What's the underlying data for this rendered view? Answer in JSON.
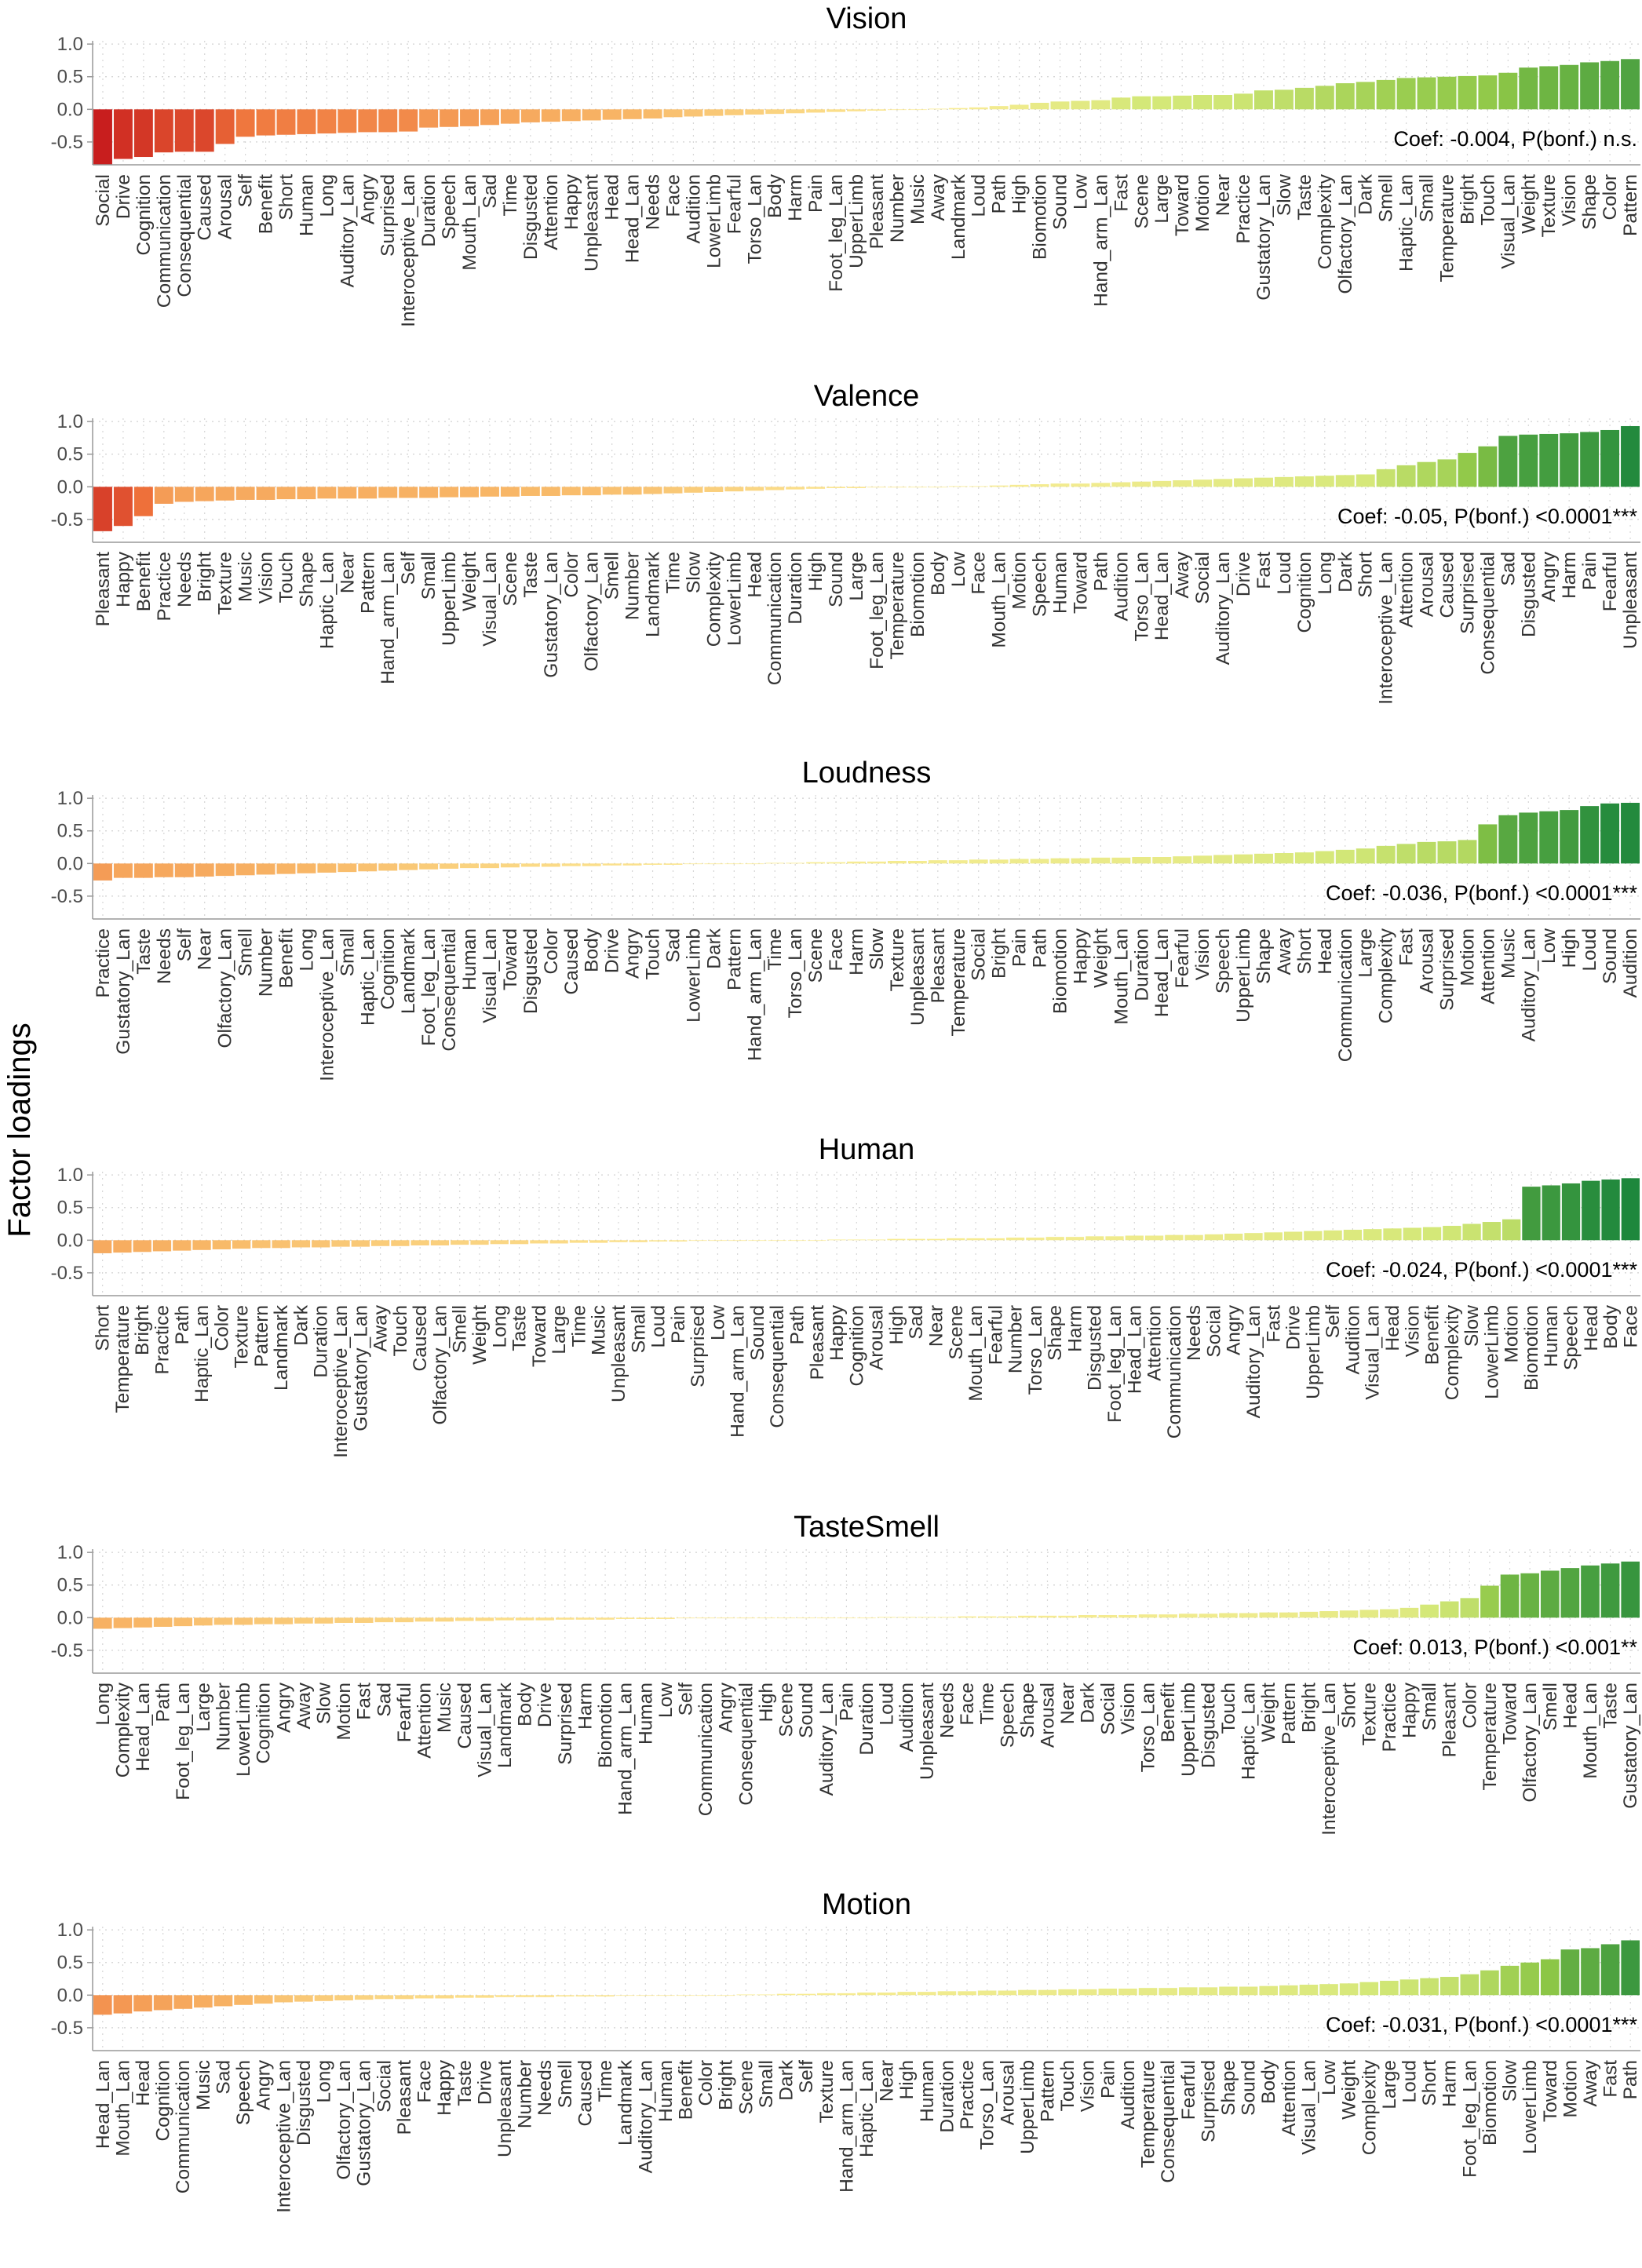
{
  "chart_data": {
    "type": "bar",
    "ylabel": "Factor loadings",
    "ylim": [
      -0.85,
      1.05
    ],
    "yticks": [
      1.0,
      0.5,
      0.0,
      -0.5
    ],
    "ytick_labels": [
      "1.0",
      "0.5",
      "0.0",
      "-0.5"
    ],
    "panels": [
      {
        "title": "Vision",
        "annotation": "Coef: -0.004, P(bonf.)  n.s.",
        "categories": [
          "Social",
          "Drive",
          "Cognition",
          "Communication",
          "Consequential",
          "Caused",
          "Arousal",
          "Self",
          "Benefit",
          "Short",
          "Human",
          "Long",
          "Auditory_Lan",
          "Angry",
          "Surprised",
          "Interoceptive_Lan",
          "Duration",
          "Speech",
          "Mouth_Lan",
          "Sad",
          "Time",
          "Disgusted",
          "Attention",
          "Happy",
          "Unpleasant",
          "Head",
          "Head_Lan",
          "Needs",
          "Face",
          "Audition",
          "LowerLimb",
          "Fearful",
          "Torso_Lan",
          "Body",
          "Harm",
          "Pain",
          "Foot_leg_Lan",
          "UpperLimb",
          "Pleasant",
          "Number",
          "Music",
          "Away",
          "Landmark",
          "Loud",
          "Path",
          "High",
          "Biomotion",
          "Sound",
          "Low",
          "Hand_arm_Lan",
          "Fast",
          "Scene",
          "Large",
          "Toward",
          "Motion",
          "Near",
          "Practice",
          "Gustatory_Lan",
          "Slow",
          "Taste",
          "Complexity",
          "Olfactory_Lan",
          "Dark",
          "Smell",
          "Haptic_Lan",
          "Small",
          "Temperature",
          "Bright",
          "Touch",
          "Visual_Lan",
          "Weight",
          "Texture",
          "Vision",
          "Shape",
          "Color",
          "Pattern"
        ],
        "values": [
          -0.85,
          -0.76,
          -0.73,
          -0.66,
          -0.65,
          -0.65,
          -0.53,
          -0.42,
          -0.4,
          -0.39,
          -0.38,
          -0.37,
          -0.36,
          -0.35,
          -0.35,
          -0.34,
          -0.28,
          -0.27,
          -0.26,
          -0.24,
          -0.22,
          -0.2,
          -0.19,
          -0.18,
          -0.17,
          -0.16,
          -0.15,
          -0.14,
          -0.12,
          -0.11,
          -0.1,
          -0.09,
          -0.08,
          -0.07,
          -0.06,
          -0.05,
          -0.04,
          -0.03,
          -0.02,
          -0.01,
          0.0,
          0.01,
          0.02,
          0.03,
          0.05,
          0.07,
          0.1,
          0.12,
          0.13,
          0.14,
          0.18,
          0.2,
          0.2,
          0.21,
          0.22,
          0.22,
          0.24,
          0.29,
          0.3,
          0.33,
          0.36,
          0.4,
          0.42,
          0.45,
          0.48,
          0.49,
          0.5,
          0.51,
          0.52,
          0.56,
          0.64,
          0.66,
          0.68,
          0.72,
          0.74,
          0.77
        ]
      },
      {
        "title": "Valence",
        "annotation": "Coef: -0.05, P(bonf.)  <0.0001***",
        "categories": [
          "Pleasant",
          "Happy",
          "Benefit",
          "Practice",
          "Needs",
          "Bright",
          "Texture",
          "Music",
          "Vision",
          "Touch",
          "Shape",
          "Haptic_Lan",
          "Near",
          "Pattern",
          "Hand_arm_Lan",
          "Self",
          "Small",
          "UpperLimb",
          "Weight",
          "Visual_Lan",
          "Scene",
          "Taste",
          "Gustatory_Lan",
          "Color",
          "Olfactory_Lan",
          "Smell",
          "Number",
          "Landmark",
          "Time",
          "Slow",
          "Complexity",
          "LowerLimb",
          "Head",
          "Communication",
          "Duration",
          "High",
          "Sound",
          "Large",
          "Foot_leg_Lan",
          "Temperature",
          "Biomotion",
          "Body",
          "Low",
          "Face",
          "Mouth_Lan",
          "Motion",
          "Speech",
          "Human",
          "Toward",
          "Path",
          "Audition",
          "Torso_Lan",
          "Head_Lan",
          "Away",
          "Social",
          "Auditory_Lan",
          "Drive",
          "Fast",
          "Loud",
          "Cognition",
          "Long",
          "Dark",
          "Short",
          "Interoceptive_Lan",
          "Attention",
          "Arousal",
          "Caused",
          "Surprised",
          "Consequential",
          "Sad",
          "Disgusted",
          "Angry",
          "Harm",
          "Pain",
          "Fearful",
          "Unpleasant"
        ],
        "values": [
          -0.68,
          -0.6,
          -0.45,
          -0.26,
          -0.23,
          -0.22,
          -0.21,
          -0.2,
          -0.2,
          -0.19,
          -0.19,
          -0.18,
          -0.18,
          -0.18,
          -0.17,
          -0.17,
          -0.17,
          -0.16,
          -0.16,
          -0.15,
          -0.15,
          -0.14,
          -0.14,
          -0.13,
          -0.13,
          -0.12,
          -0.12,
          -0.11,
          -0.1,
          -0.09,
          -0.08,
          -0.07,
          -0.06,
          -0.05,
          -0.04,
          -0.03,
          -0.02,
          -0.02,
          -0.01,
          -0.01,
          0.0,
          0.0,
          0.01,
          0.01,
          0.02,
          0.03,
          0.04,
          0.05,
          0.05,
          0.06,
          0.07,
          0.08,
          0.09,
          0.1,
          0.11,
          0.12,
          0.13,
          0.14,
          0.15,
          0.16,
          0.17,
          0.18,
          0.19,
          0.27,
          0.33,
          0.38,
          0.42,
          0.52,
          0.62,
          0.78,
          0.8,
          0.81,
          0.82,
          0.84,
          0.87,
          0.93
        ]
      },
      {
        "title": "Loudness",
        "annotation": "Coef: -0.036, P(bonf.)  <0.0001***",
        "categories": [
          "Practice",
          "Gustatory_Lan",
          "Taste",
          "Needs",
          "Self",
          "Near",
          "Olfactory_Lan",
          "Smell",
          "Number",
          "Benefit",
          "Long",
          "Interoceptive_Lan",
          "Small",
          "Haptic_Lan",
          "Cognition",
          "Landmark",
          "Foot_leg_Lan",
          "Consequential",
          "Human",
          "Visual_Lan",
          "Toward",
          "Disgusted",
          "Color",
          "Caused",
          "Body",
          "Drive",
          "Angry",
          "Touch",
          "Sad",
          "LowerLimb",
          "Dark",
          "Pattern",
          "Hand_arm_Lan",
          "Time",
          "Torso_Lan",
          "Scene",
          "Face",
          "Harm",
          "Slow",
          "Texture",
          "Unpleasant",
          "Pleasant",
          "Temperature",
          "Social",
          "Bright",
          "Pain",
          "Path",
          "Biomotion",
          "Happy",
          "Weight",
          "Mouth_Lan",
          "Duration",
          "Head_Lan",
          "Fearful",
          "Vision",
          "Speech",
          "UpperLimb",
          "Shape",
          "Away",
          "Short",
          "Head",
          "Communication",
          "Large",
          "Complexity",
          "Fast",
          "Arousal",
          "Surprised",
          "Motion",
          "Attention",
          "Music",
          "Auditory_Lan",
          "Low",
          "High",
          "Loud",
          "Sound",
          "Audition"
        ],
        "values": [
          -0.26,
          -0.22,
          -0.22,
          -0.21,
          -0.21,
          -0.2,
          -0.19,
          -0.18,
          -0.17,
          -0.16,
          -0.15,
          -0.14,
          -0.13,
          -0.12,
          -0.11,
          -0.1,
          -0.09,
          -0.08,
          -0.07,
          -0.07,
          -0.06,
          -0.05,
          -0.05,
          -0.04,
          -0.04,
          -0.03,
          -0.03,
          -0.02,
          -0.02,
          -0.01,
          -0.01,
          0.0,
          0.0,
          0.01,
          0.01,
          0.02,
          0.02,
          0.03,
          0.03,
          0.04,
          0.04,
          0.05,
          0.05,
          0.06,
          0.06,
          0.07,
          0.07,
          0.08,
          0.08,
          0.09,
          0.09,
          0.1,
          0.1,
          0.11,
          0.12,
          0.13,
          0.14,
          0.15,
          0.16,
          0.17,
          0.19,
          0.21,
          0.23,
          0.27,
          0.3,
          0.33,
          0.34,
          0.36,
          0.6,
          0.74,
          0.78,
          0.8,
          0.82,
          0.88,
          0.92,
          0.93
        ]
      },
      {
        "title": "Human",
        "annotation": "Coef: -0.024, P(bonf.)  <0.0001***",
        "categories": [
          "Short",
          "Temperature",
          "Bright",
          "Practice",
          "Path",
          "Haptic_Lan",
          "Color",
          "Texture",
          "Pattern",
          "Landmark",
          "Dark",
          "Duration",
          "Interoceptive_Lan",
          "Gustatory_Lan",
          "Away",
          "Touch",
          "Caused",
          "Olfactory_Lan",
          "Smell",
          "Weight",
          "Long",
          "Taste",
          "Toward",
          "Large",
          "Time",
          "Music",
          "Unpleasant",
          "Small",
          "Loud",
          "Pain",
          "Surprised",
          "Low",
          "Hand_arm_Lan",
          "Sound",
          "Consequential",
          "Path",
          "Pleasant",
          "Happy",
          "Cognition",
          "Arousal",
          "High",
          "Sad",
          "Near",
          "Scene",
          "Mouth_Lan",
          "Fearful",
          "Number",
          "Torso_Lan",
          "Shape",
          "Harm",
          "Disgusted",
          "Foot_leg_Lan",
          "Head_Lan",
          "Attention",
          "Communication",
          "Needs",
          "Social",
          "Angry",
          "Auditory_Lan",
          "Fast",
          "Drive",
          "UpperLimb",
          "Self",
          "Audition",
          "Visual_Lan",
          "Head",
          "Vision",
          "Benefit",
          "Complexity",
          "Slow",
          "LowerLimb",
          "Motion",
          "Biomotion",
          "Human",
          "Speech",
          "Head",
          "Body",
          "Face"
        ],
        "values": [
          -0.2,
          -0.19,
          -0.18,
          -0.17,
          -0.16,
          -0.15,
          -0.14,
          -0.13,
          -0.12,
          -0.12,
          -0.11,
          -0.11,
          -0.1,
          -0.1,
          -0.09,
          -0.09,
          -0.08,
          -0.08,
          -0.07,
          -0.07,
          -0.06,
          -0.06,
          -0.05,
          -0.05,
          -0.04,
          -0.04,
          -0.03,
          -0.03,
          -0.02,
          -0.02,
          -0.01,
          -0.01,
          -0.01,
          0.0,
          0.0,
          0.0,
          0.0,
          0.01,
          0.01,
          0.01,
          0.02,
          0.02,
          0.02,
          0.03,
          0.03,
          0.03,
          0.04,
          0.04,
          0.05,
          0.05,
          0.06,
          0.06,
          0.07,
          0.07,
          0.08,
          0.08,
          0.09,
          0.1,
          0.11,
          0.12,
          0.13,
          0.14,
          0.15,
          0.16,
          0.17,
          0.18,
          0.19,
          0.2,
          0.22,
          0.25,
          0.28,
          0.32,
          0.82,
          0.84,
          0.87,
          0.91,
          0.93,
          0.95
        ]
      },
      {
        "title": "TasteSmell",
        "annotation": "Coef: 0.013, P(bonf.)  <0.001**",
        "categories": [
          "Long",
          "Complexity",
          "Head_Lan",
          "Path",
          "Foot_leg_Lan",
          "Large",
          "Number",
          "LowerLimb",
          "Cognition",
          "Angry",
          "Away",
          "Slow",
          "Motion",
          "Fast",
          "Sad",
          "Fearful",
          "Attention",
          "Music",
          "Caused",
          "Visual_Lan",
          "Landmark",
          "Body",
          "Drive",
          "Surprised",
          "Harm",
          "Biomotion",
          "Hand_arm_Lan",
          "Human",
          "Low",
          "Self",
          "Communication",
          "Angry",
          "Consequential",
          "High",
          "Scene",
          "Sound",
          "Auditory_Lan",
          "Pain",
          "Duration",
          "Loud",
          "Audition",
          "Unpleasant",
          "Needs",
          "Face",
          "Time",
          "Speech",
          "Shape",
          "Arousal",
          "Near",
          "Dark",
          "Social",
          "Vision",
          "Torso_Lan",
          "Benefit",
          "UpperLimb",
          "Disgusted",
          "Touch",
          "Haptic_Lan",
          "Weight",
          "Pattern",
          "Bright",
          "Interoceptive_Lan",
          "Short",
          "Texture",
          "Practice",
          "Happy",
          "Small",
          "Pleasant",
          "Color",
          "Temperature",
          "Toward",
          "Olfactory_Lan",
          "Smell",
          "Head",
          "Mouth_Lan",
          "Taste",
          "Gustatory_Lan"
        ],
        "values": [
          -0.17,
          -0.16,
          -0.15,
          -0.14,
          -0.13,
          -0.12,
          -0.11,
          -0.11,
          -0.1,
          -0.1,
          -0.09,
          -0.09,
          -0.08,
          -0.08,
          -0.07,
          -0.07,
          -0.06,
          -0.06,
          -0.05,
          -0.05,
          -0.04,
          -0.04,
          -0.04,
          -0.03,
          -0.03,
          -0.03,
          -0.02,
          -0.02,
          -0.02,
          -0.01,
          -0.01,
          -0.01,
          -0.01,
          0.0,
          0.0,
          0.0,
          0.0,
          0.0,
          0.0,
          0.01,
          0.01,
          0.01,
          0.01,
          0.02,
          0.02,
          0.02,
          0.03,
          0.03,
          0.03,
          0.04,
          0.04,
          0.04,
          0.05,
          0.05,
          0.06,
          0.06,
          0.07,
          0.07,
          0.08,
          0.08,
          0.09,
          0.1,
          0.11,
          0.12,
          0.13,
          0.15,
          0.2,
          0.25,
          0.3,
          0.49,
          0.66,
          0.68,
          0.72,
          0.76,
          0.8,
          0.83,
          0.86
        ]
      },
      {
        "title": "Motion",
        "annotation": "Coef: -0.031, P(bonf.)  <0.0001***",
        "categories": [
          "Head_Lan",
          "Mouth_Lan",
          "Head",
          "Cognition",
          "Communication",
          "Music",
          "Sad",
          "Speech",
          "Angry",
          "Interoceptive_Lan",
          "Disgusted",
          "Long",
          "Olfactory_Lan",
          "Gustatory_Lan",
          "Social",
          "Pleasant",
          "Face",
          "Happy",
          "Taste",
          "Drive",
          "Unpleasant",
          "Number",
          "Needs",
          "Smell",
          "Caused",
          "Time",
          "Landmark",
          "Auditory_Lan",
          "Human",
          "Benefit",
          "Color",
          "Bright",
          "Scene",
          "Small",
          "Dark",
          "Self",
          "Texture",
          "Hand_arm_Lan",
          "Haptic_Lan",
          "Near",
          "High",
          "Human",
          "Duration",
          "Practice",
          "Torso_Lan",
          "Arousal",
          "UpperLimb",
          "Pattern",
          "Touch",
          "Vision",
          "Pain",
          "Audition",
          "Temperature",
          "Consequential",
          "Fearful",
          "Surprised",
          "Shape",
          "Sound",
          "Body",
          "Attention",
          "Visual_Lan",
          "Low",
          "Weight",
          "Complexity",
          "Large",
          "Loud",
          "Short",
          "Harm",
          "Foot_leg_Lan",
          "Biomotion",
          "Slow",
          "LowerLimb",
          "Toward",
          "Motion",
          "Away",
          "Fast",
          "Path"
        ],
        "values": [
          -0.3,
          -0.28,
          -0.25,
          -0.23,
          -0.21,
          -0.19,
          -0.17,
          -0.15,
          -0.13,
          -0.11,
          -0.1,
          -0.09,
          -0.08,
          -0.07,
          -0.06,
          -0.06,
          -0.05,
          -0.05,
          -0.04,
          -0.04,
          -0.03,
          -0.03,
          -0.03,
          -0.02,
          -0.02,
          -0.02,
          -0.01,
          -0.01,
          -0.01,
          0.0,
          0.0,
          0.0,
          0.01,
          0.01,
          0.02,
          0.02,
          0.03,
          0.03,
          0.04,
          0.04,
          0.05,
          0.05,
          0.06,
          0.06,
          0.07,
          0.07,
          0.08,
          0.08,
          0.09,
          0.09,
          0.1,
          0.1,
          0.11,
          0.11,
          0.12,
          0.12,
          0.13,
          0.13,
          0.14,
          0.15,
          0.16,
          0.17,
          0.18,
          0.2,
          0.22,
          0.24,
          0.26,
          0.28,
          0.32,
          0.38,
          0.45,
          0.5,
          0.55,
          0.7,
          0.72,
          0.78,
          0.84
        ]
      }
    ]
  }
}
